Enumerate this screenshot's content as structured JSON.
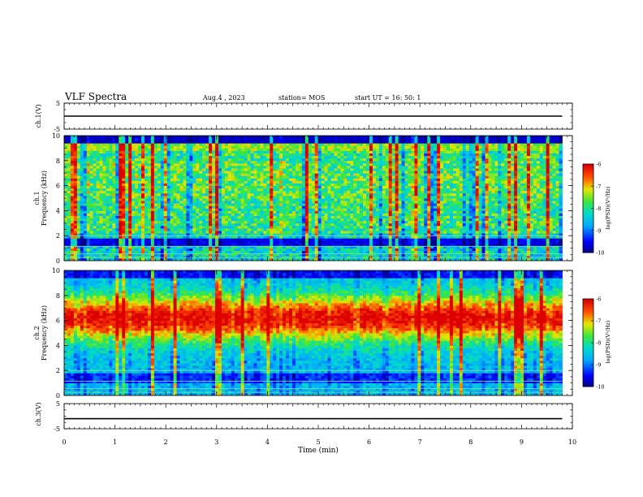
{
  "header": {
    "title": "VLF Spectra",
    "date": "Aug.4  , 2023",
    "station": "station= MOS",
    "start": "start  UT  =   16: 50: 1"
  },
  "chart_data": [
    {
      "type": "line",
      "panel": "ch1-voltage",
      "ylabel": "ch.1(V)",
      "ylim": [
        -5,
        5
      ],
      "yticks": [
        "5",
        "-5"
      ],
      "series": [
        {
          "values": [
            [
              0,
              0
            ],
            [
              9.8,
              0
            ]
          ]
        }
      ],
      "xlim": [
        0,
        10
      ]
    },
    {
      "type": "heatmap",
      "panel": "ch1-spectrogram",
      "ylabel": "ch.1 Frequency (kHz)",
      "ylim": [
        0,
        10
      ],
      "yticks": [
        "0",
        "2",
        "4",
        "6",
        "8",
        "10"
      ],
      "xlim": [
        0,
        10
      ],
      "data_extent_min": 9.8,
      "colorbar": {
        "label": "log(PSD)(V²/Hz)",
        "range": [
          -10,
          -6
        ],
        "ticks": [
          "-6",
          "-7",
          "-8",
          "-9",
          "-10"
        ]
      },
      "description_values": {
        "dominant_band_khz": [
          2,
          9
        ],
        "black_band_khz": [
          9.3,
          10
        ]
      }
    },
    {
      "type": "heatmap",
      "panel": "ch2-spectrogram",
      "ylabel": "ch.2 Frequency (kHz)",
      "ylim": [
        0,
        10
      ],
      "yticks": [
        "0",
        "2",
        "4",
        "6",
        "8",
        "10"
      ],
      "xlim": [
        0,
        10
      ],
      "data_extent_min": 9.8,
      "colorbar": {
        "label": "log(PSD)(V²/Hz)",
        "range": [
          -10,
          -6
        ],
        "ticks": [
          "-6",
          "-7",
          "-8",
          "-9",
          "-10"
        ]
      },
      "description_values": {
        "dominant_band_khz": [
          4.5,
          7.5
        ]
      }
    },
    {
      "type": "line",
      "panel": "ch3-voltage",
      "ylabel": "ch.3(V)",
      "ylim": [
        -5,
        5
      ],
      "yticks": [
        "5",
        "-5"
      ],
      "series": [
        {
          "values": [
            [
              0,
              -1
            ],
            [
              9.8,
              -1
            ]
          ]
        }
      ],
      "xlim": [
        0,
        10
      ],
      "xlabel": "Time  (min)",
      "xticks": [
        "0",
        "1",
        "2",
        "3",
        "4",
        "5",
        "6",
        "7",
        "8",
        "9",
        "10"
      ]
    }
  ],
  "labels": {
    "ch1_v": "ch.1(V)",
    "ch3_v": "ch.3(V)",
    "ch1_freq_a": "ch.1",
    "ch2_freq_a": "ch.2",
    "freq_b": "Frequency (kHz)",
    "cbar": "log(PSD)(V²/Hz)",
    "xlabel": "Time  (min)"
  }
}
